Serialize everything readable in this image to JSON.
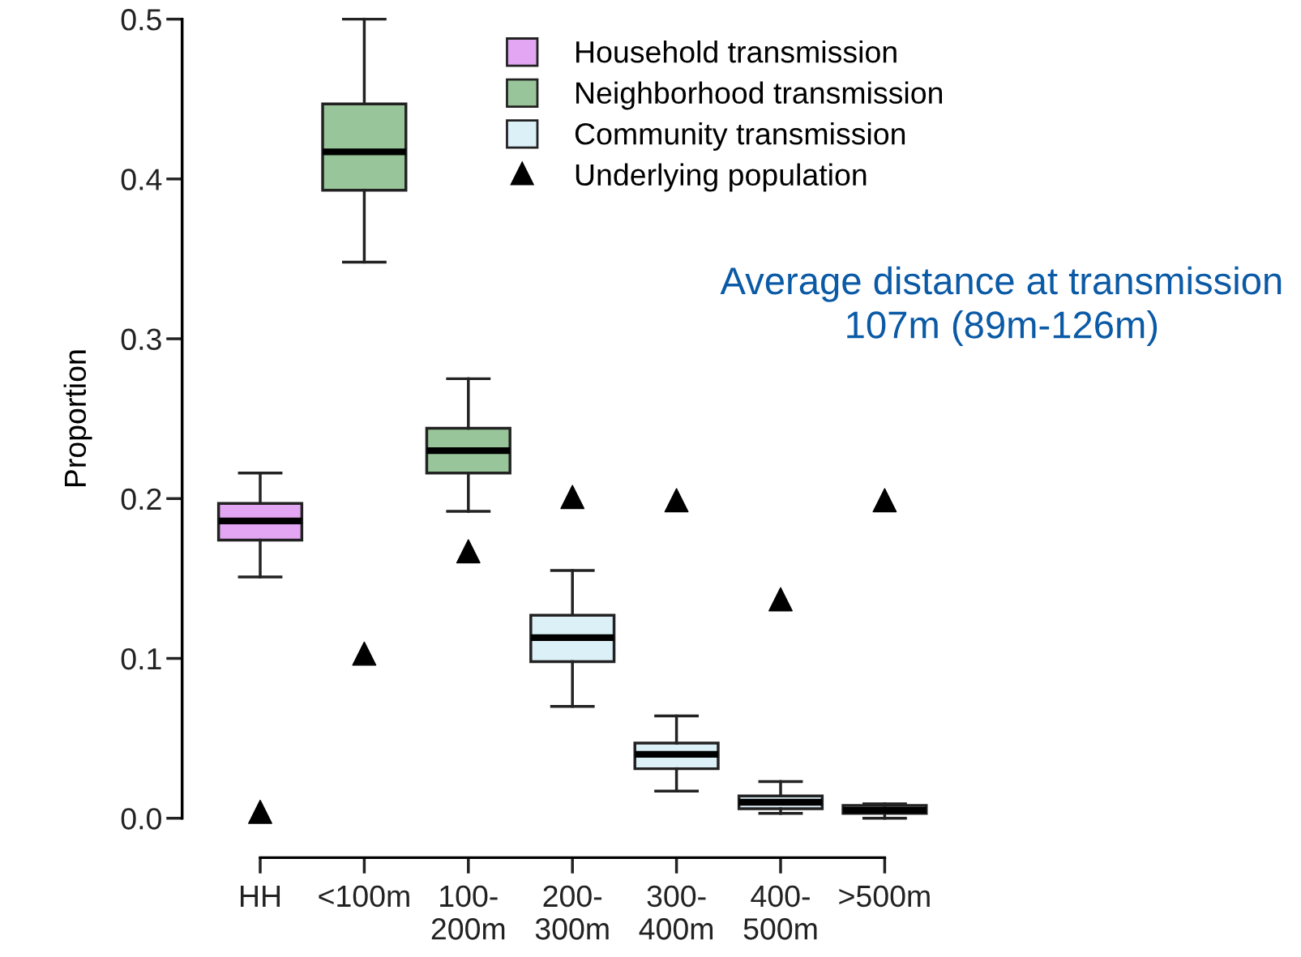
{
  "chart_data": {
    "type": "box",
    "categories": [
      "HH",
      "<100m",
      "100-\n200m",
      "200-\n300m",
      "300-\n400m",
      "400-\n500m",
      ">500m"
    ],
    "ylabel": "Proportion",
    "ylim": [
      0,
      0.5
    ],
    "yticks": [
      {
        "value": 0,
        "label": "0.0"
      },
      0.1,
      0.2,
      0.3,
      0.4,
      0.5
    ],
    "grid": false,
    "legend": "top",
    "series": [
      {
        "name": "Household transmission",
        "color": "#e3a6f2",
        "boxes": [
          {
            "low": 0.151,
            "q1": 0.174,
            "median": 0.186,
            "q3": 0.197,
            "high": 0.216
          },
          null,
          null,
          null,
          null,
          null,
          null
        ]
      },
      {
        "name": "Neighborhood transmission",
        "color": "#98c69a",
        "boxes": [
          null,
          {
            "low": 0.348,
            "q1": 0.393,
            "median": 0.417,
            "q3": 0.447,
            "high": 0.5
          },
          {
            "low": 0.192,
            "q1": 0.216,
            "median": 0.23,
            "q3": 0.244,
            "high": 0.275
          },
          null,
          null,
          null,
          null
        ]
      },
      {
        "name": "Community transmission",
        "color": "#dcf0f8",
        "boxes": [
          null,
          null,
          null,
          {
            "low": 0.07,
            "q1": 0.098,
            "median": 0.113,
            "q3": 0.127,
            "high": 0.155
          },
          {
            "low": 0.017,
            "q1": 0.031,
            "median": 0.04,
            "q3": 0.047,
            "high": 0.064
          },
          {
            "low": 0.003,
            "q1": 0.006,
            "median": 0.01,
            "q3": 0.014,
            "high": 0.023
          },
          {
            "low": 0.0,
            "q1": 0.003,
            "median": 0.005,
            "q3": 0.008,
            "high": 0.009
          }
        ]
      },
      {
        "name": "Underlying population",
        "type": "scatter",
        "marker": "triangle",
        "color": "#000000",
        "values": [
          0.004,
          0.103,
          0.167,
          0.201,
          0.199,
          0.137,
          0.199
        ]
      }
    ],
    "annotations": [
      "Average distance at transmission\n107m (89m-126m)"
    ]
  }
}
